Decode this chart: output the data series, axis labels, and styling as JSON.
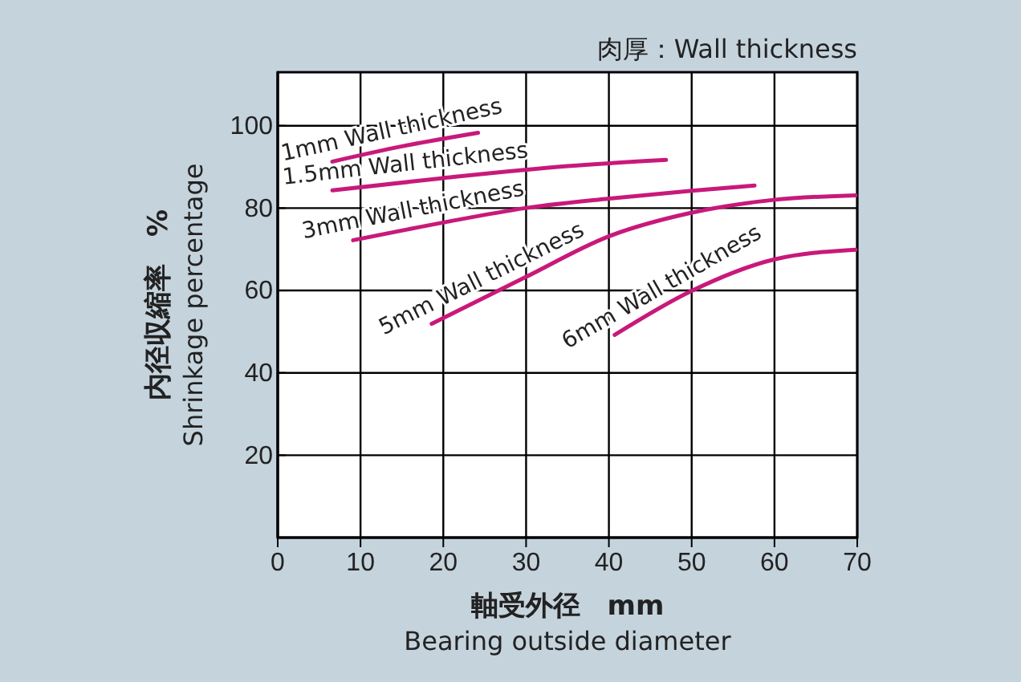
{
  "chart_data": {
    "type": "line",
    "title": "肉厚：Wall thickness",
    "xlabel": "軸受外径　mm\nBearing outside diameter",
    "ylabel": "内径収縮率　%\nShrinkage percentage",
    "xlim": [
      0,
      70
    ],
    "ylim": [
      0,
      113
    ],
    "xticks": [
      0,
      10,
      20,
      30,
      40,
      50,
      60,
      70
    ],
    "yticks": [
      20,
      40,
      60,
      80,
      100
    ],
    "grid": true,
    "line_style": "solid",
    "series": [
      {
        "name": "1mm Wall thickness",
        "color": "#c8197a",
        "x": [
          6.6,
          15,
          24.2
        ],
        "values": [
          91.3,
          95,
          98.3
        ]
      },
      {
        "name": "1.5mm Wall thickness",
        "color": "#c8197a",
        "x": [
          6.6,
          20,
          35,
          46.9
        ],
        "values": [
          84.3,
          87.3,
          90.2,
          91.7
        ]
      },
      {
        "name": "3mm Wall thickness",
        "color": "#c8197a",
        "x": [
          9.1,
          20,
          29.9,
          40,
          50,
          57.6
        ],
        "values": [
          72.2,
          76.5,
          80,
          82.3,
          84.2,
          85.5
        ]
      },
      {
        "name": "5mm Wall thickness",
        "color": "#c8197a",
        "x": [
          18.6,
          29.9,
          39.8,
          49.8,
          59.9,
          69.8
        ],
        "values": [
          51.9,
          63.2,
          73,
          78.8,
          82,
          83.1
        ]
      },
      {
        "name": "6mm Wall thickness",
        "color": "#c8197a",
        "x": [
          40.7,
          49.8,
          59.9,
          69.8
        ],
        "values": [
          49.2,
          59.7,
          67.5,
          69.9
        ]
      }
    ]
  }
}
